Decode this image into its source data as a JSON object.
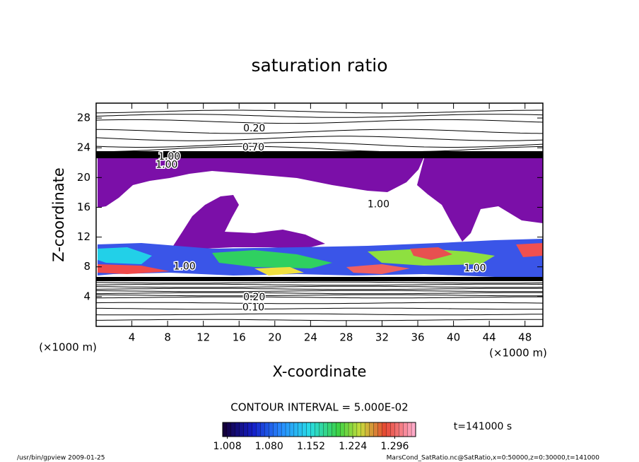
{
  "chart_data": {
    "type": "contour",
    "title": "saturation ratio",
    "xlabel": "X-coordinate",
    "ylabel": "Z-coordinate",
    "xunit": "(×1000 m)",
    "yunit": "(×1000 m)",
    "xlim": [
      0,
      50
    ],
    "ylim": [
      0,
      30
    ],
    "xticks": [
      4,
      8,
      12,
      16,
      20,
      24,
      28,
      32,
      36,
      40,
      44,
      48
    ],
    "yticks": [
      4,
      8,
      12,
      16,
      20,
      24,
      28
    ],
    "contour_labels": [
      {
        "text": "0.20",
        "x": 17.7,
        "y": 26.6
      },
      {
        "text": "0.70",
        "x": 17.6,
        "y": 24.0
      },
      {
        "text": "1.00",
        "x": 8.2,
        "y": 22.8
      },
      {
        "text": "1.00",
        "x": 7.9,
        "y": 21.7
      },
      {
        "text": "1.00",
        "x": 31.6,
        "y": 16.4
      },
      {
        "text": "1.00",
        "x": 9.9,
        "y": 8.0
      },
      {
        "text": "1.00",
        "x": 42.4,
        "y": 7.8
      },
      {
        "text": "0.20",
        "x": 17.7,
        "y": 3.9
      },
      {
        "text": "0.10",
        "x": 17.6,
        "y": 2.5
      }
    ],
    "contour_interval": "CONTOUR INTERVAL = 5.000E-02",
    "time_label": "t=141000 s",
    "clim": [
      1.0,
      1.332
    ],
    "cticks": [
      1.008,
      {
        "value": 1.08,
        "label": "1.080"
      },
      1.152,
      1.224,
      1.296
    ],
    "footer_left": "/usr/bin/gpview  2009-01-25",
    "footer_right": "MarsCond_SatRatio.nc@SatRatio,x=0:50000,z=0:30000,t=141000"
  }
}
